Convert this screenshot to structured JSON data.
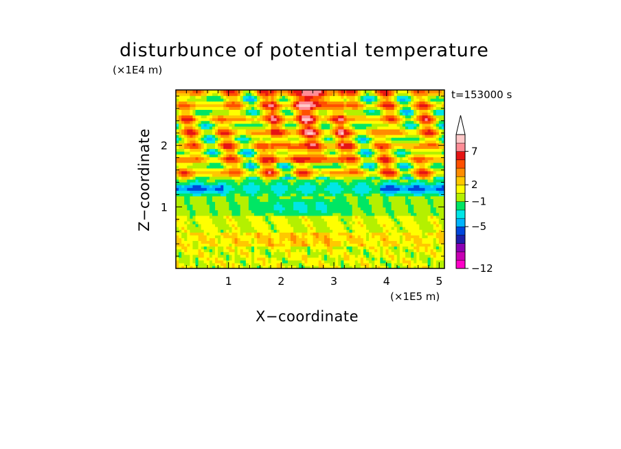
{
  "chart_data": {
    "type": "heatmap",
    "title": "disturbunce of potential temperature",
    "time_label": "t=153000 s",
    "xlabel": "X−coordinate",
    "ylabel": "Z−coordinate",
    "x_multiplier": "(×1E5 m)",
    "y_multiplier": "(×1E4 m)",
    "xlim": [
      0,
      5.1
    ],
    "ylim": [
      0,
      2.9
    ],
    "x_ticks": [
      {
        "value": 1,
        "label": "1"
      },
      {
        "value": 2,
        "label": "2"
      },
      {
        "value": 3,
        "label": "3"
      },
      {
        "value": 4,
        "label": "4"
      },
      {
        "value": 5,
        "label": "5"
      }
    ],
    "y_ticks": [
      {
        "value": 1,
        "label": "1"
      },
      {
        "value": 2,
        "label": "2"
      }
    ],
    "colorbar": {
      "levels": [
        {
          "color": "#ff00c8"
        },
        {
          "color": "#c800b4"
        },
        {
          "color": "#8c00b4"
        },
        {
          "color": "#1e1eaa"
        },
        {
          "color": "#0046dc"
        },
        {
          "color": "#00b4ff"
        },
        {
          "color": "#00e6e6"
        },
        {
          "color": "#00e664"
        },
        {
          "color": "#b4f000"
        },
        {
          "color": "#ffff00"
        },
        {
          "color": "#ffc800"
        },
        {
          "color": "#ff8c00"
        },
        {
          "color": "#ff5000"
        },
        {
          "color": "#e61414"
        },
        {
          "color": "#ff8c96"
        },
        {
          "color": "#ffc8c8"
        }
      ],
      "labels": [
        {
          "text": "7",
          "level": 14
        },
        {
          "text": "2",
          "level": 10
        },
        {
          "text": "−1",
          "level": 8
        },
        {
          "text": "−5",
          "level": 5
        },
        {
          "text": "−12",
          "level": 0
        }
      ]
    }
  }
}
